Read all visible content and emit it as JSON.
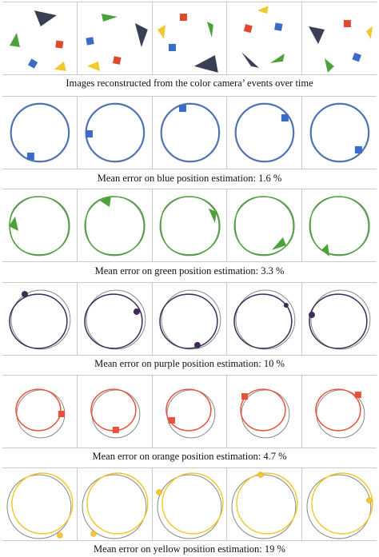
{
  "captions": {
    "shapes": "Images reconstructed from the color camera’ events over time",
    "blue": "Mean error on blue position estimation: 1.6 %",
    "green": "Mean error on green position estimation: 3.3 %",
    "purple": "Mean error on purple position estimation: 10 %",
    "orange": "Mean error on orange position estimation: 4.7 %",
    "yellow": "Mean error on yellow position estimation: 19 %"
  },
  "colors": {
    "blue": "#3a6bc8",
    "green": "#4ca23a",
    "purple": "#3d2a55",
    "orange": "#e8523a",
    "yellow": "#f2c82e",
    "reference": "#888888",
    "dark_triangle": "#3a3f55",
    "red_square": "#e04a2c"
  }
}
